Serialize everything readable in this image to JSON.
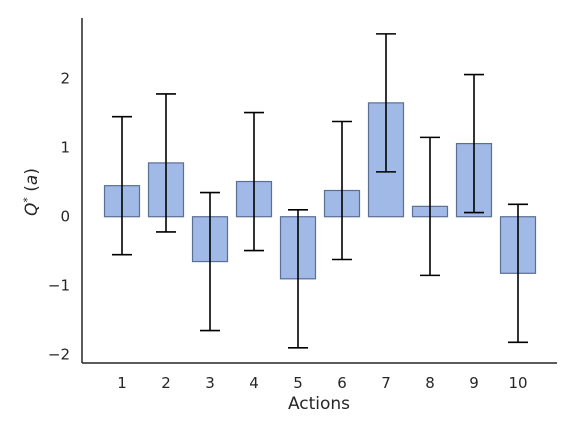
{
  "chart_data": {
    "type": "bar",
    "xlabel": "Actions",
    "ylabel": "Q*(a)",
    "categories": [
      "1",
      "2",
      "3",
      "4",
      "5",
      "6",
      "7",
      "8",
      "9",
      "10"
    ],
    "values": [
      0.45,
      0.78,
      -0.65,
      0.51,
      -0.9,
      0.38,
      1.65,
      0.15,
      1.06,
      -0.82
    ],
    "error": [
      1.0,
      1.0,
      1.0,
      1.0,
      1.0,
      1.0,
      1.0,
      1.0,
      1.0,
      1.0
    ],
    "ylim": [
      -2.12,
      2.88
    ],
    "yticks": [
      -2,
      -1,
      0,
      1,
      2
    ],
    "ytick_labels": [
      "−2",
      "−1",
      "0",
      "1",
      "2"
    ],
    "grid": false,
    "colors": {
      "bar_fill": "#a1b9e6",
      "bar_edge": "#5a6e96",
      "error_bar": "#000000",
      "axis": "#262626"
    }
  }
}
